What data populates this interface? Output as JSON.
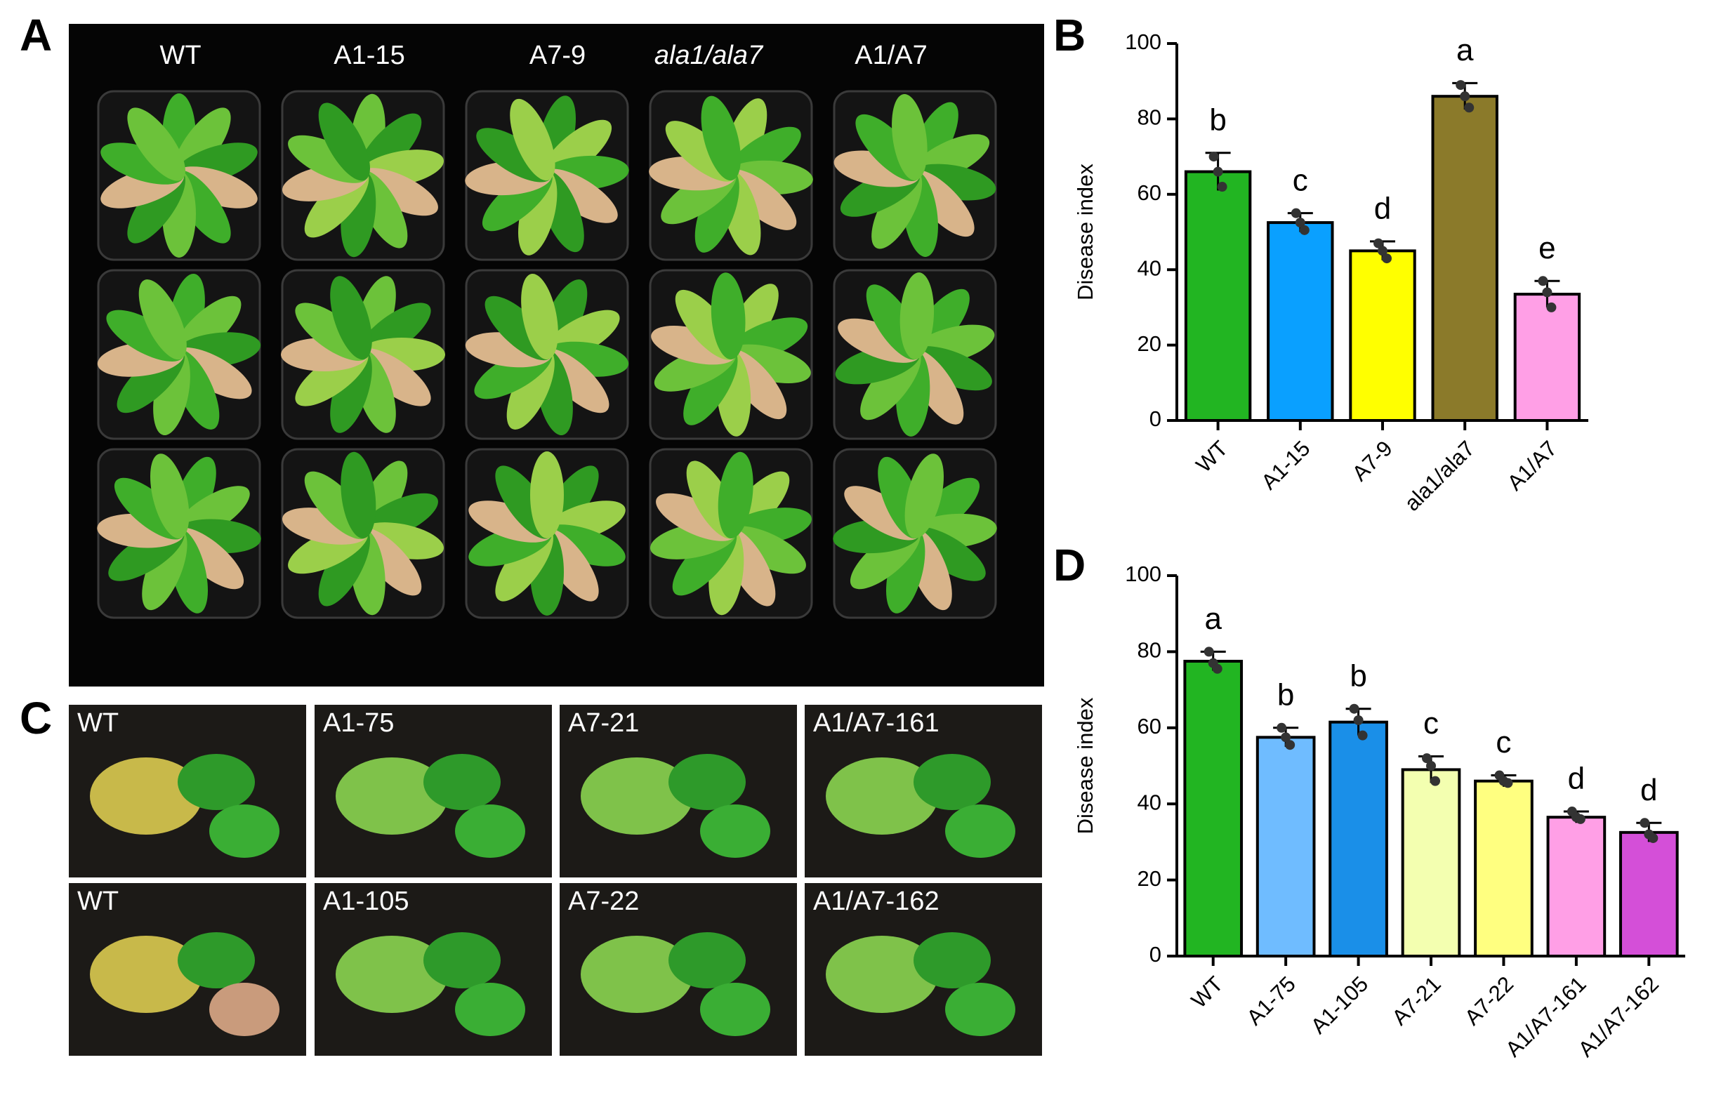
{
  "panel_labels": [
    "A",
    "B",
    "C",
    "D"
  ],
  "photo_a": {
    "labels": [
      "WT",
      "A1-15",
      "A7-9",
      "ala1/ala7",
      "A1/A7"
    ]
  },
  "photo_c": {
    "rows": [
      [
        "WT",
        "A1-75",
        "A7-21",
        "A1/A7-161"
      ],
      [
        "WT",
        "A1-105",
        "A7-22",
        "A1/A7-162"
      ]
    ]
  },
  "chart_data": [
    {
      "type": "bar",
      "y_label": "Disease index",
      "categories": [
        "WT",
        "A1-15",
        "A7-9",
        "ala1/ala7",
        "A1/A7"
      ],
      "values": [
        66,
        52.5,
        45,
        86,
        33.5
      ],
      "errors": [
        5,
        2.5,
        2.5,
        3.5,
        3.5
      ],
      "points": [
        [
          70,
          66,
          62
        ],
        [
          55,
          52.5,
          50.5
        ],
        [
          47,
          45,
          43
        ],
        [
          89,
          86,
          83
        ],
        [
          37,
          34,
          30
        ]
      ],
      "letters": [
        "b",
        "c",
        "d",
        "a",
        "e"
      ],
      "colors": [
        "#22b522",
        "#0aa0ff",
        "#ffff00",
        "#8b7a2a",
        "#ff9fe6"
      ],
      "ylim": [
        0,
        100
      ],
      "yticks": [
        0,
        20,
        40,
        60,
        80,
        100
      ]
    },
    {
      "type": "bar",
      "y_label": "Disease index",
      "categories": [
        "WT",
        "A1-75",
        "A1-105",
        "A7-21",
        "A7-22",
        "A1/A7-161",
        "A1/A7-162"
      ],
      "values": [
        77.5,
        57.5,
        61.5,
        49,
        46,
        36.5,
        32.5
      ],
      "errors": [
        2.5,
        2.5,
        3.5,
        3.5,
        1.5,
        1.5,
        2.5
      ],
      "points": [
        [
          80,
          77,
          75.5
        ],
        [
          60,
          57.5,
          55.5
        ],
        [
          65,
          62,
          58
        ],
        [
          52,
          50,
          46
        ],
        [
          47.5,
          46,
          45.5
        ],
        [
          38,
          36.5,
          36
        ],
        [
          35,
          32,
          31
        ]
      ],
      "letters": [
        "a",
        "b",
        "b",
        "c",
        "c",
        "d",
        "d"
      ],
      "colors": [
        "#22b522",
        "#6fbcff",
        "#1a8fe8",
        "#f3ffb0",
        "#ffff80",
        "#ff9fe6",
        "#d44fd8"
      ],
      "ylim": [
        0,
        100
      ],
      "yticks": [
        0,
        20,
        40,
        60,
        80,
        100
      ]
    }
  ]
}
